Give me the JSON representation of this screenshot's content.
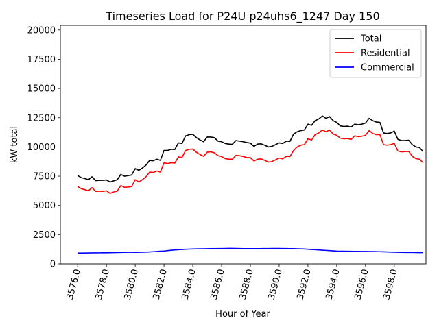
{
  "chart_data": {
    "type": "line",
    "title": "Timeseries Load for P24U p24uhs6_1247  Day 150",
    "xlabel": "Hour of Year",
    "ylabel": "kW total",
    "xlim": [
      3574.8,
      3600.2
    ],
    "ylim": [
      0,
      20400
    ],
    "x_ticks": [
      3576,
      3578,
      3580,
      3582,
      3584,
      3586,
      3588,
      3590,
      3592,
      3594,
      3596,
      3598
    ],
    "x_tick_labels": [
      "3576.0",
      "3578.0",
      "3580.0",
      "3582.0",
      "3584.0",
      "3586.0",
      "3588.0",
      "3590.0",
      "3592.0",
      "3594.0",
      "3596.0",
      "3598.0"
    ],
    "y_ticks": [
      0,
      2500,
      5000,
      7500,
      10000,
      12500,
      15000,
      17500,
      20000
    ],
    "y_tick_labels": [
      "0",
      "2500",
      "5000",
      "7500",
      "10000",
      "12500",
      "15000",
      "17500",
      "20000"
    ],
    "legend_position": "top-right",
    "x_start": 3576,
    "x_step": 0.25,
    "series": [
      {
        "name": "Total",
        "color": "#000000",
        "values": [
          7550,
          7380,
          7300,
          7200,
          7450,
          7120,
          7150,
          7150,
          7180,
          7000,
          7100,
          7200,
          7650,
          7500,
          7550,
          7600,
          8150,
          8000,
          8200,
          8450,
          8850,
          8820,
          8950,
          8850,
          9700,
          9700,
          9800,
          9780,
          10350,
          10300,
          10950,
          11050,
          11080,
          10800,
          10600,
          10450,
          10850,
          10850,
          10800,
          10500,
          10450,
          10300,
          10250,
          10230,
          10550,
          10500,
          10450,
          10380,
          10330,
          10050,
          10250,
          10270,
          10150,
          10000,
          10050,
          10200,
          10350,
          10300,
          10500,
          10480,
          11100,
          11300,
          11400,
          11450,
          11950,
          11850,
          12250,
          12400,
          12650,
          12450,
          12600,
          12250,
          12100,
          11800,
          11750,
          11780,
          11700,
          11950,
          11900,
          11950,
          12050,
          12450,
          12250,
          12130,
          12100,
          11200,
          11150,
          11200,
          11350,
          10650,
          10550,
          10550,
          10580,
          10200,
          10000,
          9950,
          9600
        ]
      },
      {
        "name": "Residential",
        "color": "#ff0000",
        "values": [
          6620,
          6430,
          6350,
          6250,
          6520,
          6200,
          6220,
          6200,
          6250,
          6030,
          6150,
          6230,
          6700,
          6550,
          6570,
          6620,
          7200,
          7000,
          7200,
          7450,
          7850,
          7820,
          7950,
          7850,
          8650,
          8580,
          8650,
          8620,
          9150,
          9100,
          9700,
          9800,
          9820,
          9550,
          9350,
          9200,
          9550,
          9580,
          9500,
          9250,
          9180,
          9000,
          8950,
          8950,
          9280,
          9250,
          9180,
          9100,
          9080,
          8800,
          8950,
          8980,
          8850,
          8700,
          8750,
          8900,
          9050,
          8980,
          9200,
          9180,
          9700,
          10000,
          10150,
          10200,
          10700,
          10600,
          11050,
          11200,
          11450,
          11300,
          11450,
          11100,
          11000,
          10750,
          10700,
          10720,
          10650,
          10950,
          10880,
          10920,
          11000,
          11400,
          11150,
          11050,
          11050,
          10200,
          10150,
          10200,
          10300,
          9650,
          9580,
          9600,
          9620,
          9200,
          9000,
          8950,
          8650
        ]
      },
      {
        "name": "Commercial",
        "color": "#0000ff",
        "values": [
          930,
          930,
          930,
          935,
          940,
          940,
          945,
          950,
          950,
          955,
          960,
          970,
          980,
          985,
          990,
          990,
          985,
          990,
          1000,
          1010,
          1020,
          1040,
          1060,
          1080,
          1100,
          1130,
          1160,
          1190,
          1210,
          1230,
          1250,
          1260,
          1270,
          1280,
          1285,
          1290,
          1295,
          1300,
          1305,
          1310,
          1310,
          1315,
          1320,
          1320,
          1315,
          1310,
          1305,
          1300,
          1300,
          1300,
          1305,
          1305,
          1310,
          1310,
          1315,
          1315,
          1315,
          1310,
          1310,
          1305,
          1300,
          1290,
          1280,
          1270,
          1250,
          1230,
          1210,
          1190,
          1170,
          1150,
          1130,
          1110,
          1090,
          1080,
          1080,
          1075,
          1075,
          1070,
          1065,
          1060,
          1060,
          1055,
          1050,
          1045,
          1040,
          1030,
          1020,
          1010,
          1000,
          990,
          985,
          980,
          978,
          975,
          970,
          965,
          960
        ]
      }
    ]
  }
}
